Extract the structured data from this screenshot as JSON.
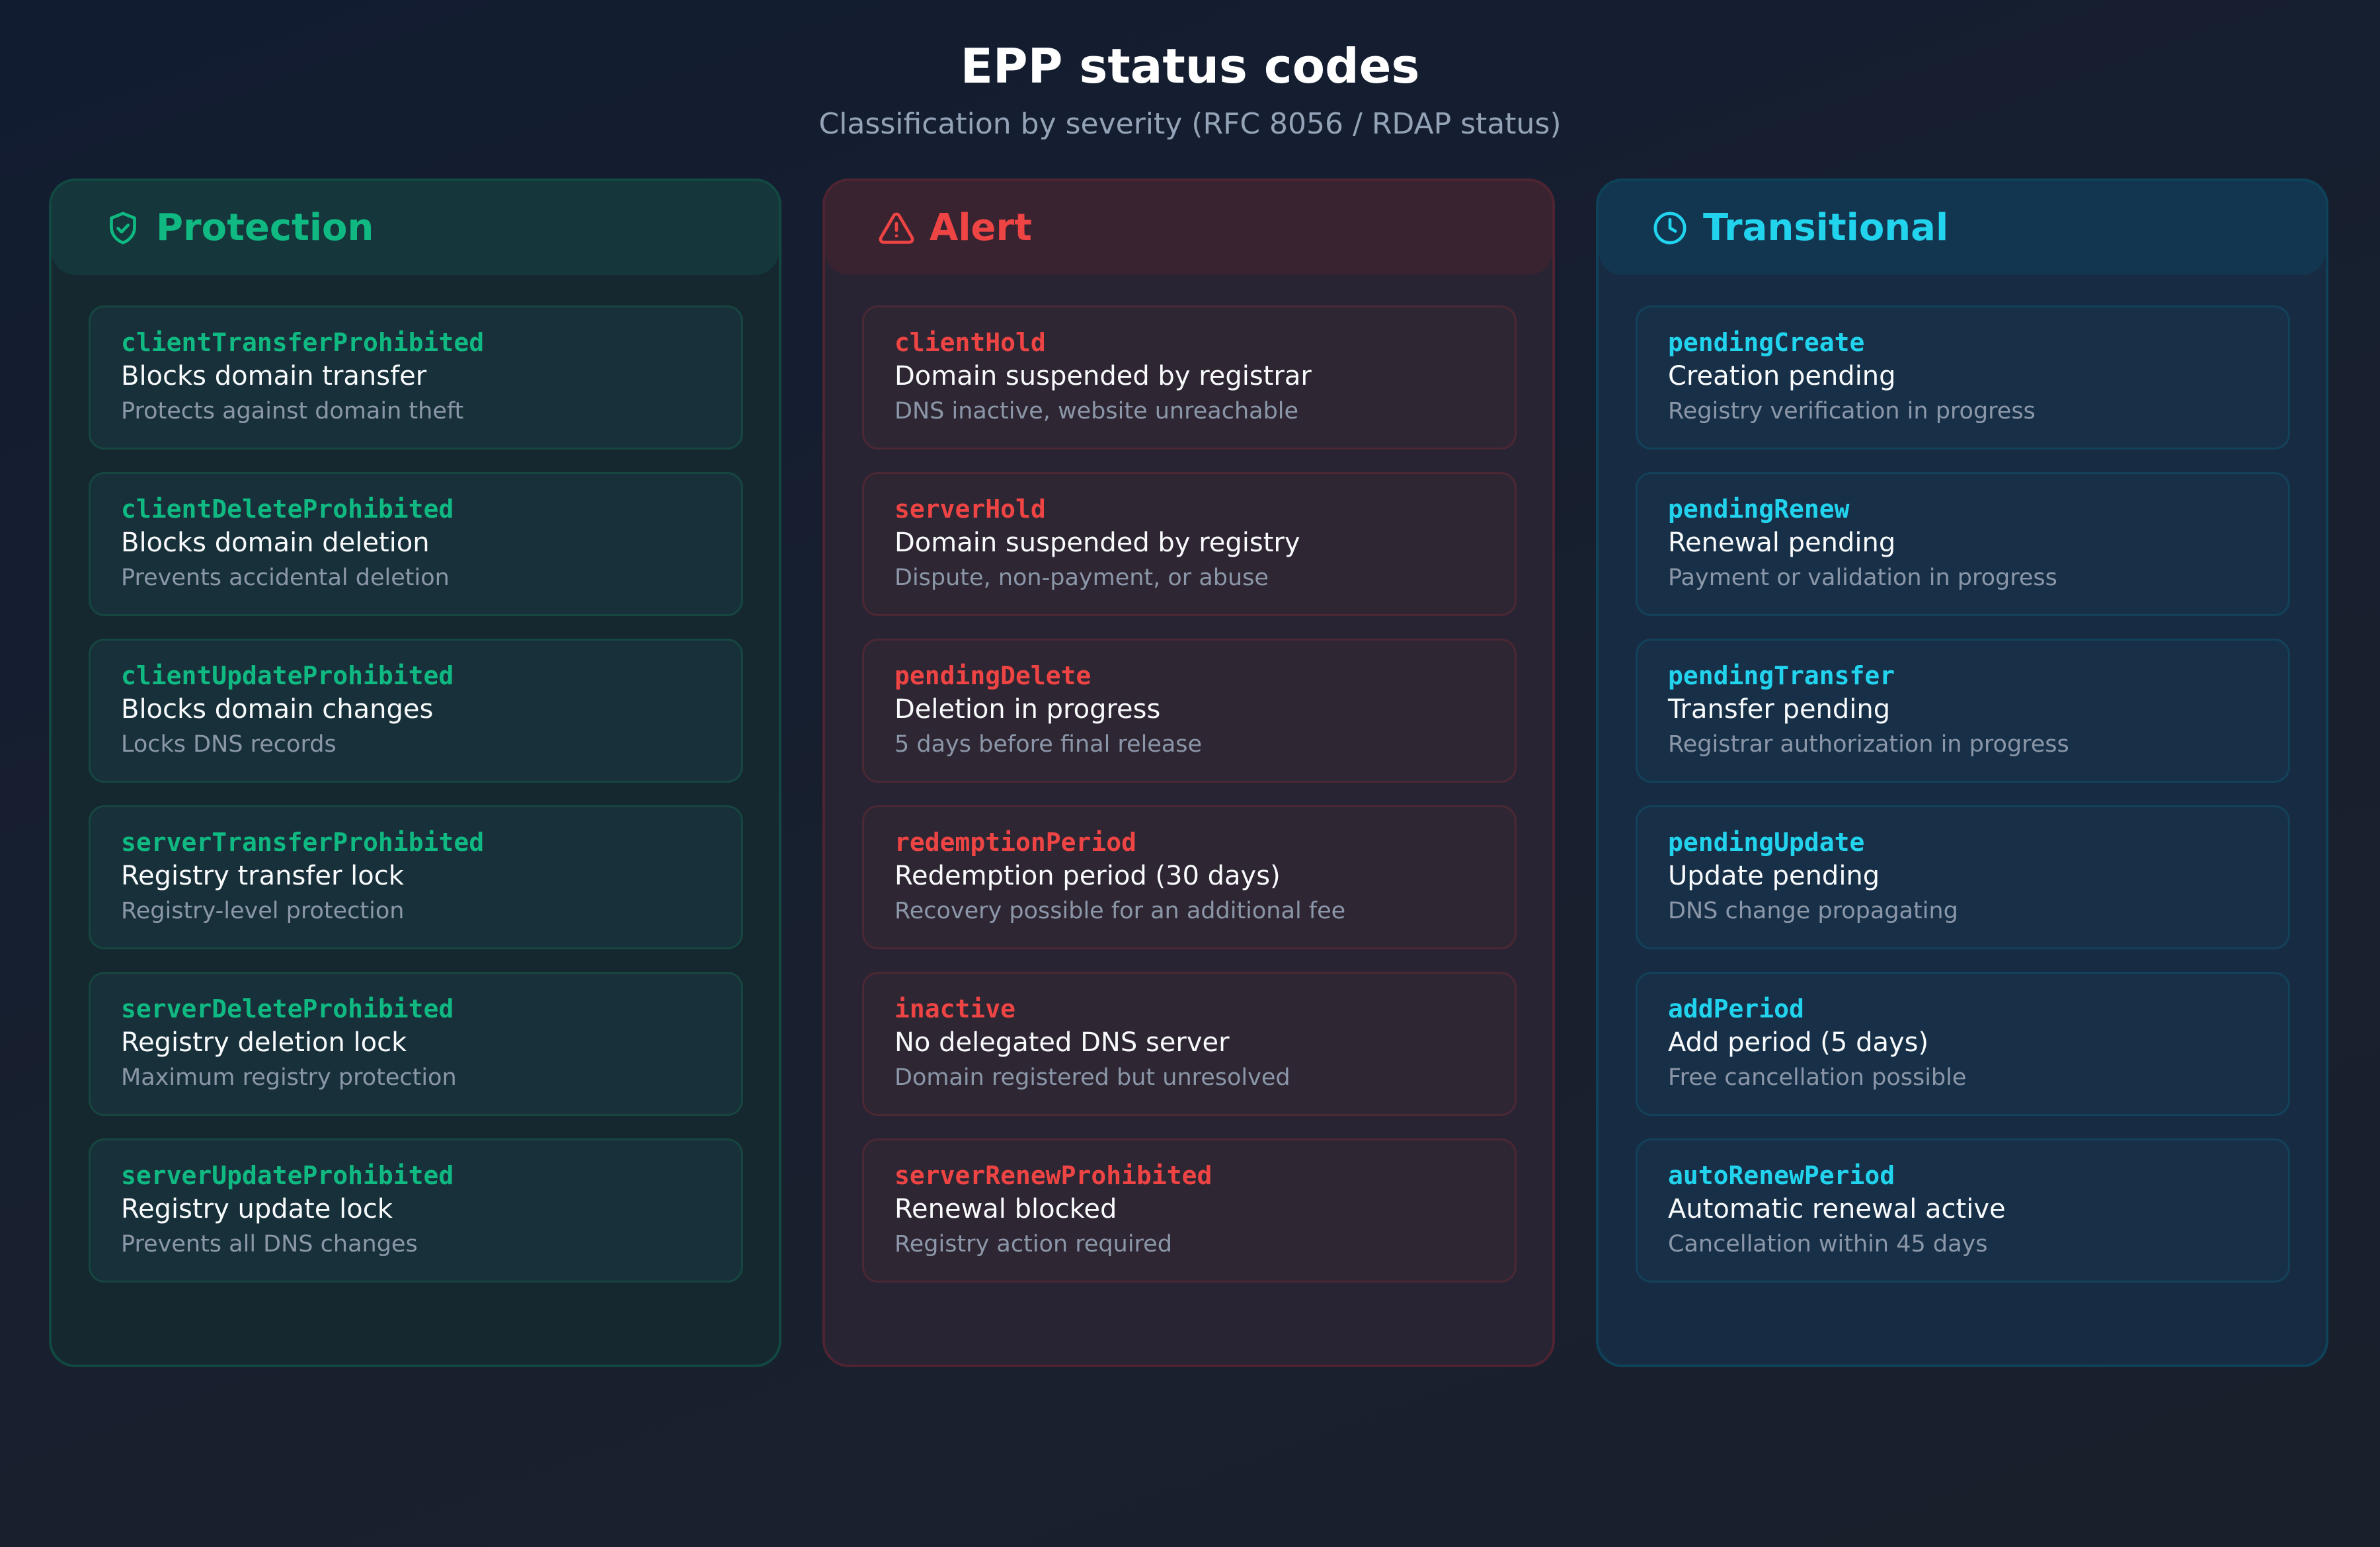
{
  "header": {
    "title": "EPP status codes",
    "subtitle": "Classification by severity (RFC 8056 / RDAP status)"
  },
  "colors": {
    "protection": "#10b981",
    "alert": "#ef4444",
    "transitional": "#22d3ee"
  },
  "columns": [
    {
      "title": "Protection",
      "icon": "shield-check-icon",
      "items": [
        {
          "code": "clientTransferProhibited",
          "desc": "Blocks domain transfer",
          "note": "Protects against domain theft"
        },
        {
          "code": "clientDeleteProhibited",
          "desc": "Blocks domain deletion",
          "note": "Prevents accidental deletion"
        },
        {
          "code": "clientUpdateProhibited",
          "desc": "Blocks domain changes",
          "note": "Locks DNS records"
        },
        {
          "code": "serverTransferProhibited",
          "desc": "Registry transfer lock",
          "note": "Registry-level protection"
        },
        {
          "code": "serverDeleteProhibited",
          "desc": "Registry deletion lock",
          "note": "Maximum registry protection"
        },
        {
          "code": "serverUpdateProhibited",
          "desc": "Registry update lock",
          "note": "Prevents all DNS changes"
        }
      ]
    },
    {
      "title": "Alert",
      "icon": "warning-triangle-icon",
      "items": [
        {
          "code": "clientHold",
          "desc": "Domain suspended by registrar",
          "note": "DNS inactive, website unreachable"
        },
        {
          "code": "serverHold",
          "desc": "Domain suspended by registry",
          "note": "Dispute, non-payment, or abuse"
        },
        {
          "code": "pendingDelete",
          "desc": "Deletion in progress",
          "note": "5 days before final release"
        },
        {
          "code": "redemptionPeriod",
          "desc": "Redemption period (30 days)",
          "note": "Recovery possible for an additional fee"
        },
        {
          "code": "inactive",
          "desc": "No delegated DNS server",
          "note": "Domain registered but unresolved"
        },
        {
          "code": "serverRenewProhibited",
          "desc": "Renewal blocked",
          "note": "Registry action required"
        }
      ]
    },
    {
      "title": "Transitional",
      "icon": "clock-icon",
      "items": [
        {
          "code": "pendingCreate",
          "desc": "Creation pending",
          "note": "Registry verification in progress"
        },
        {
          "code": "pendingRenew",
          "desc": "Renewal pending",
          "note": "Payment or validation in progress"
        },
        {
          "code": "pendingTransfer",
          "desc": "Transfer pending",
          "note": "Registrar authorization in progress"
        },
        {
          "code": "pendingUpdate",
          "desc": "Update pending",
          "note": "DNS change propagating"
        },
        {
          "code": "addPeriod",
          "desc": "Add period (5 days)",
          "note": "Free cancellation possible"
        },
        {
          "code": "autoRenewPeriod",
          "desc": "Automatic renewal active",
          "note": "Cancellation within 45 days"
        }
      ]
    }
  ]
}
